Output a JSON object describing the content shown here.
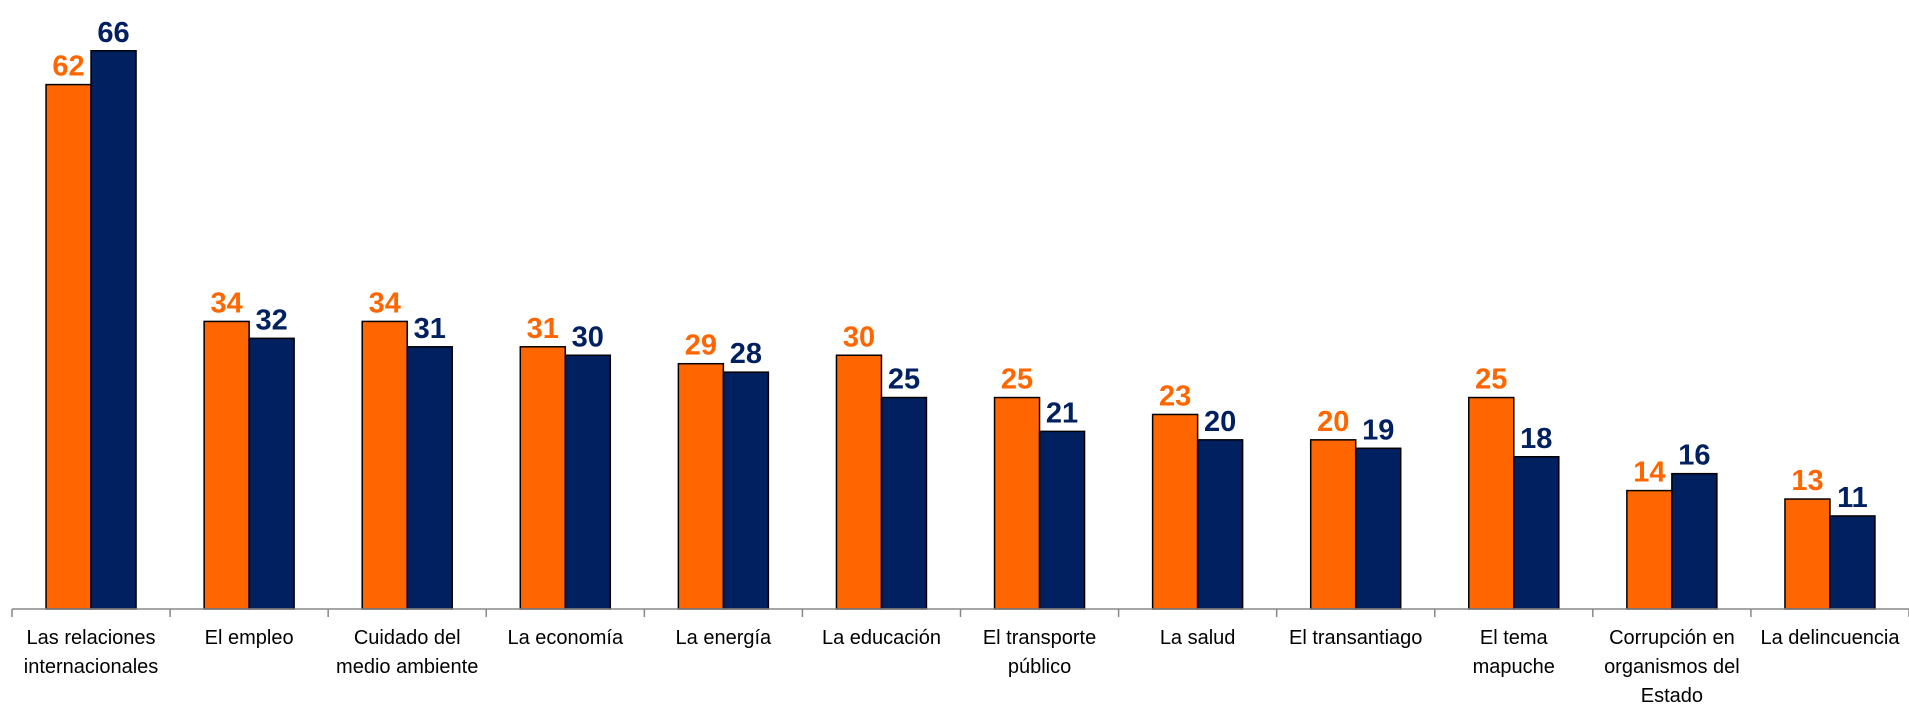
{
  "chart_data": {
    "type": "bar",
    "categories": [
      "Las relaciones internacionales",
      "El empleo",
      "Cuidado del medio ambiente",
      "La economía",
      "La energía",
      "La educación",
      "El transporte público",
      "La salud",
      "El transantiago",
      "El tema mapuche",
      "Corrupción en organismos del Estado",
      "La delincuencia"
    ],
    "series": [
      {
        "color": "#ff6600",
        "values": [
          62,
          34,
          34,
          31,
          29,
          30,
          25,
          23,
          20,
          25,
          14,
          13
        ]
      },
      {
        "color": "#002060",
        "values": [
          66,
          32,
          31,
          30,
          28,
          25,
          21,
          20,
          19,
          18,
          16,
          11
        ]
      }
    ],
    "ylim": [
      0,
      72
    ]
  }
}
